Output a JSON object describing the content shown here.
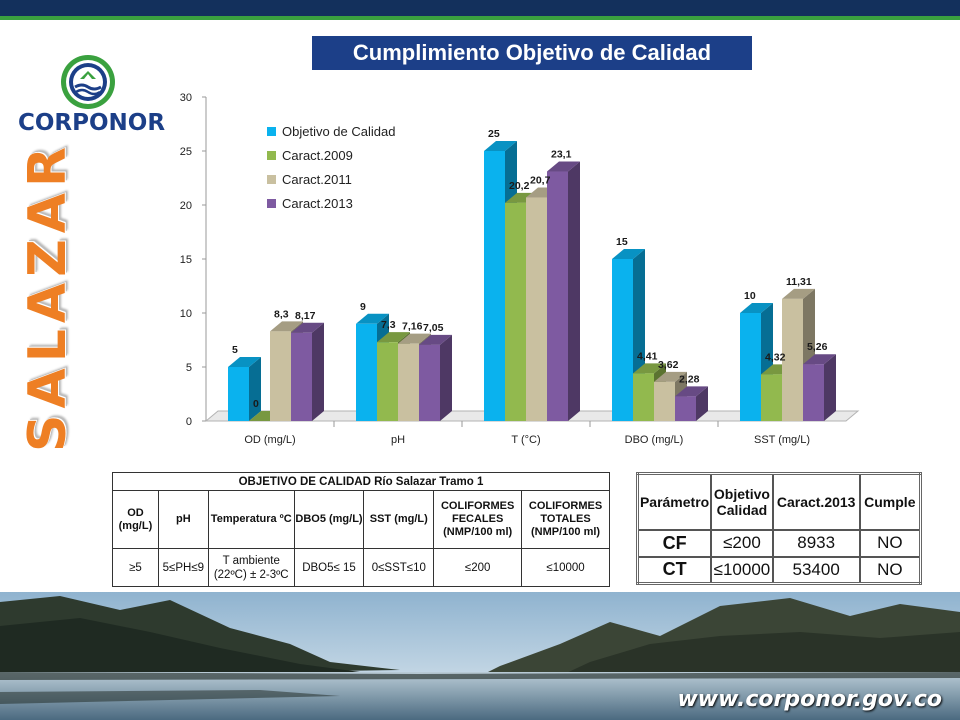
{
  "header": {
    "title": "Cumplimiento Objetivo de Calidad"
  },
  "logo": {
    "name": "CORPONOR"
  },
  "side": {
    "label": "SALAZAR"
  },
  "chart_data": {
    "type": "bar",
    "categories": [
      "OD (mg/L)",
      "pH",
      "T (°C)",
      "DBO (mg/L)",
      "SST (mg/L)"
    ],
    "series": [
      {
        "name": "Objetivo de Calidad",
        "color": "#0ab2ee",
        "values": [
          5,
          9,
          25,
          15,
          10
        ],
        "labels": [
          "5",
          "9",
          "25",
          "15",
          "10"
        ]
      },
      {
        "name": "Caract.2009",
        "color": "#92b94e",
        "values": [
          0,
          7.3,
          20.2,
          4.41,
          4.32
        ],
        "labels": [
          "0",
          "7,3",
          "20,2",
          "4,41",
          "4,32"
        ]
      },
      {
        "name": "Caract.2011",
        "color": "#c9c0a0",
        "values": [
          8.3,
          7.16,
          20.7,
          3.62,
          11.31
        ],
        "labels": [
          "8,3",
          "7,16",
          "20,7",
          "3,62",
          "11,31"
        ]
      },
      {
        "name": "Caract.2013",
        "color": "#7e5aa1",
        "values": [
          8.17,
          7.05,
          23.1,
          2.28,
          5.26
        ],
        "labels": [
          "8,17",
          "7,05",
          "23,1",
          "2,28",
          "5,26"
        ]
      }
    ],
    "ylim": [
      0,
      30
    ],
    "yticks": [
      0,
      5,
      10,
      15,
      20,
      25,
      30
    ],
    "legend": "top-left",
    "grid": false
  },
  "table1": {
    "title": "OBJETIVO DE CALIDAD Río Salazar Tramo 1",
    "headers": [
      "OD (mg/L)",
      "pH",
      "Temperatura ºC",
      "DBO5 (mg/L)",
      "SST (mg/L)",
      "COLIFORMES FECALES (NMP/100 ml)",
      "COLIFORMES TOTALES (NMP/100 ml)"
    ],
    "row": [
      "≥5",
      "5≤PH≤9",
      "T ambiente (22ºC) ± 2-3ºC",
      "DBO5≤ 15",
      "0≤SST≤10",
      "≤200",
      "≤10000"
    ]
  },
  "table2": {
    "headers": [
      "Parámetro",
      "Objetivo Calidad",
      "Caract.2013",
      "Cumple"
    ],
    "rows": [
      [
        "CF",
        "≤200",
        "8933",
        "NO"
      ],
      [
        "CT",
        "≤10000",
        "53400",
        "NO"
      ]
    ]
  },
  "footer": {
    "website": "www.corponor.gov.co"
  }
}
